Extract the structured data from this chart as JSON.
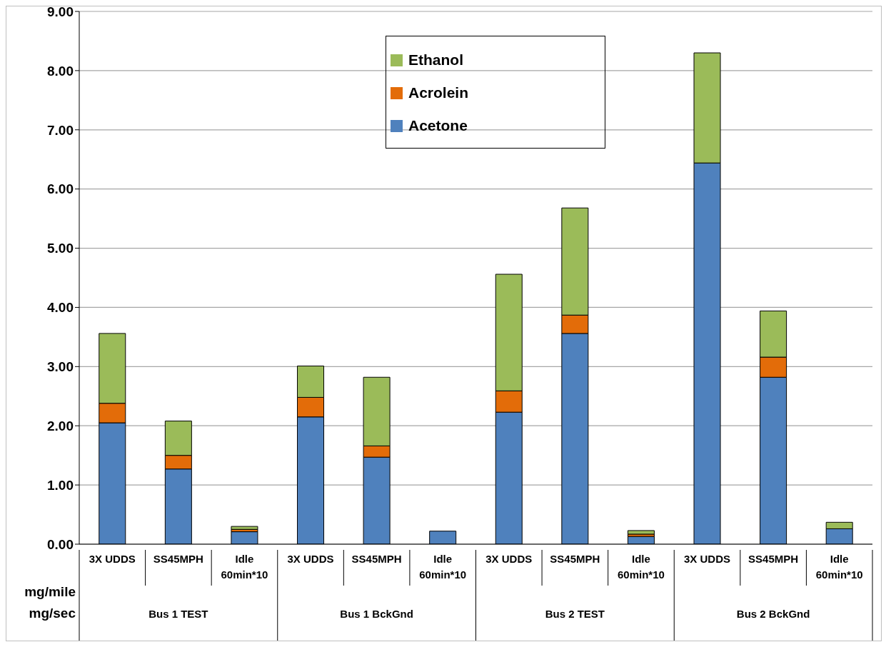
{
  "chart_data": {
    "type": "bar",
    "stacked": true,
    "categories": [
      "3X UDDS",
      "SS45MPH",
      "Idle 60min*10",
      "3X UDDS",
      "SS45MPH",
      "Idle 60min*10",
      "3X UDDS",
      "SS45MPH",
      "Idle 60min*10",
      "3X UDDS",
      "SS45MPH",
      "Idle 60min*10"
    ],
    "series": [
      {
        "name": "Acetone",
        "color": "#4f81bd",
        "values": [
          2.05,
          1.27,
          0.21,
          2.15,
          1.47,
          0.22,
          2.23,
          3.56,
          0.13,
          6.44,
          2.82,
          0.26
        ]
      },
      {
        "name": "Acrolein",
        "color": "#e36c09",
        "values": [
          0.33,
          0.23,
          0.04,
          0.33,
          0.19,
          0,
          0.36,
          0.31,
          0.04,
          0,
          0.34,
          0
        ]
      },
      {
        "name": "Ethanol",
        "color": "#9bbb59",
        "values": [
          1.18,
          0.58,
          0.05,
          0.53,
          1.16,
          0,
          1.97,
          1.81,
          0.06,
          1.86,
          0.78,
          0.11
        ]
      }
    ],
    "ylim": [
      0,
      9
    ],
    "yticks": [
      {
        "value": 0,
        "label": "0.00"
      },
      {
        "value": 1,
        "label": "1.00"
      },
      {
        "value": 2,
        "label": "2.00"
      },
      {
        "value": 3,
        "label": "3.00"
      },
      {
        "value": 4,
        "label": "4.00"
      },
      {
        "value": 5,
        "label": "5.00"
      },
      {
        "value": 6,
        "label": "6.00"
      },
      {
        "value": 7,
        "label": "7.00"
      },
      {
        "value": 8,
        "label": "8.00"
      },
      {
        "value": 9,
        "label": "9.00"
      }
    ],
    "grid": "y",
    "legend": "top",
    "annotations": [
      "mg/mile",
      "mg/sec",
      "Bus 1 TEST",
      "Bus 1 BckGnd",
      "Bus 2 TEST",
      "Bus 2 BckGnd"
    ]
  }
}
